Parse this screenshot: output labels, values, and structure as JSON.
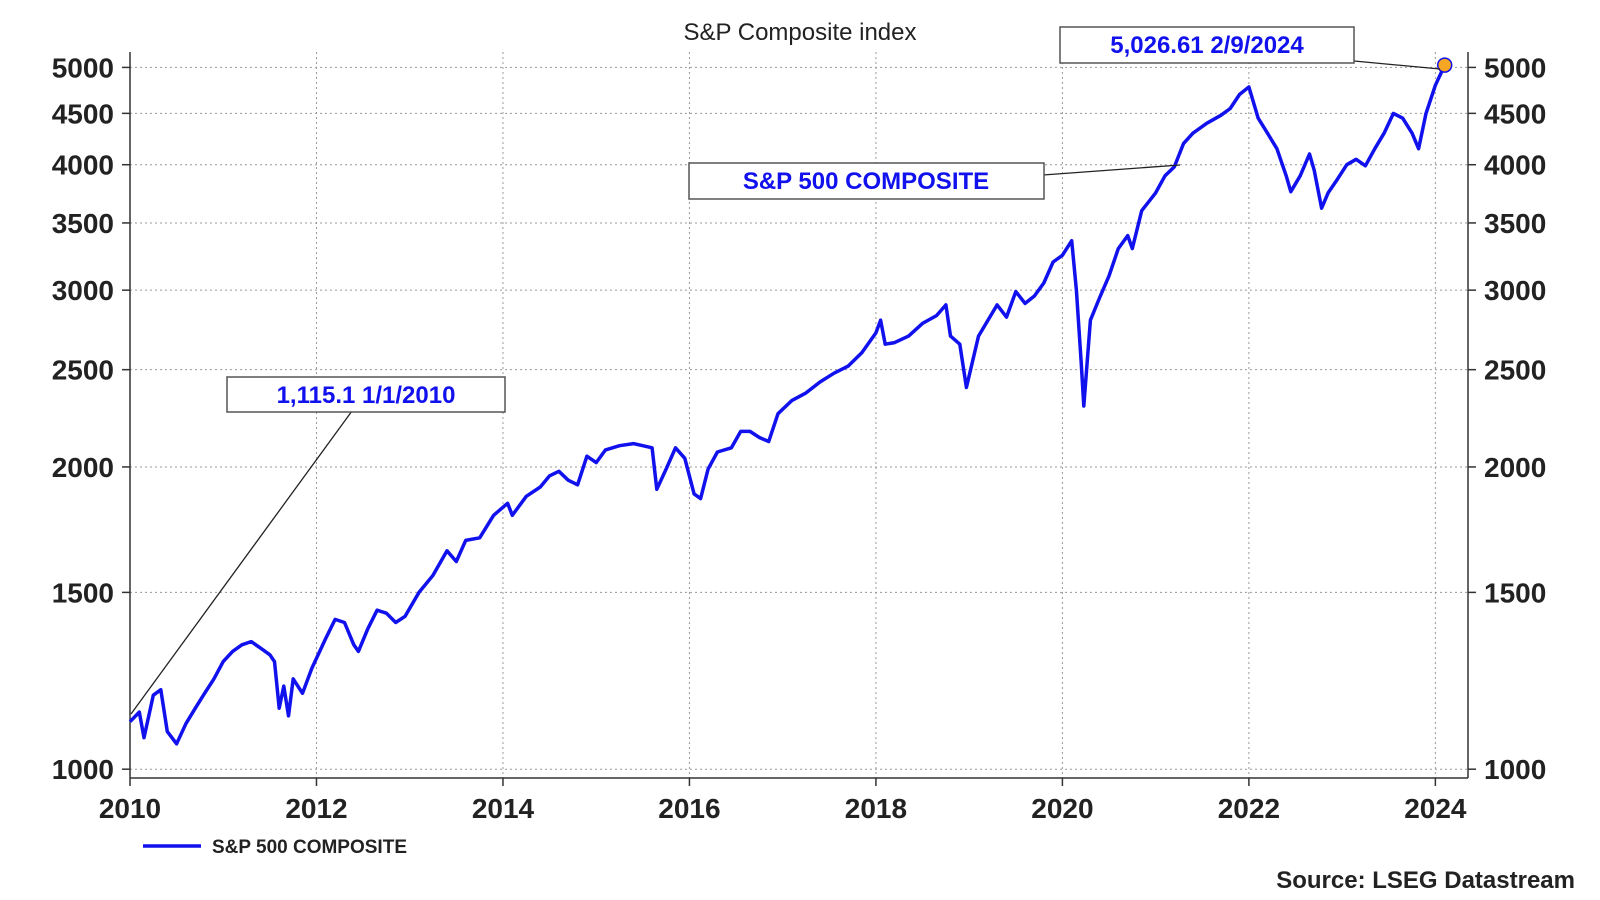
{
  "chart_data": {
    "type": "line",
    "title": "S&P Composite index",
    "yscale": "log",
    "ylim": [
      980,
      5180
    ],
    "xlim": [
      2010.0,
      2024.35
    ],
    "y_ticks": [
      1000,
      1500,
      2000,
      2500,
      3000,
      3500,
      4000,
      4500,
      5000
    ],
    "x_ticks": [
      2010,
      2012,
      2014,
      2016,
      2018,
      2020,
      2022,
      2024
    ],
    "grid": true,
    "legend_position": "bottom-left",
    "line_color": "#1111ee",
    "series": [
      {
        "name": "S&P 500 COMPOSITE",
        "x": [
          2010.0,
          2010.1,
          2010.15,
          2010.25,
          2010.33,
          2010.4,
          2010.5,
          2010.6,
          2010.7,
          2010.8,
          2010.9,
          2011.0,
          2011.1,
          2011.2,
          2011.3,
          2011.4,
          2011.5,
          2011.55,
          2011.6,
          2011.65,
          2011.7,
          2011.75,
          2011.85,
          2011.95,
          2012.1,
          2012.2,
          2012.3,
          2012.4,
          2012.45,
          2012.55,
          2012.65,
          2012.75,
          2012.85,
          2012.95,
          2013.1,
          2013.25,
          2013.4,
          2013.5,
          2013.6,
          2013.75,
          2013.9,
          2014.05,
          2014.1,
          2014.25,
          2014.4,
          2014.5,
          2014.6,
          2014.7,
          2014.8,
          2014.9,
          2015.0,
          2015.1,
          2015.25,
          2015.4,
          2015.5,
          2015.6,
          2015.65,
          2015.75,
          2015.85,
          2015.95,
          2016.05,
          2016.12,
          2016.2,
          2016.3,
          2016.45,
          2016.55,
          2016.65,
          2016.75,
          2016.85,
          2016.95,
          2017.1,
          2017.25,
          2017.4,
          2017.55,
          2017.7,
          2017.85,
          2018.0,
          2018.05,
          2018.1,
          2018.2,
          2018.35,
          2018.5,
          2018.65,
          2018.75,
          2018.8,
          2018.9,
          2018.97,
          2019.1,
          2019.3,
          2019.4,
          2019.5,
          2019.6,
          2019.7,
          2019.8,
          2019.9,
          2020.0,
          2020.1,
          2020.15,
          2020.2,
          2020.23,
          2020.3,
          2020.4,
          2020.5,
          2020.6,
          2020.7,
          2020.75,
          2020.85,
          2021.0,
          2021.1,
          2021.2,
          2021.3,
          2021.4,
          2021.55,
          2021.7,
          2021.8,
          2021.9,
          2022.0,
          2022.1,
          2022.2,
          2022.3,
          2022.4,
          2022.45,
          2022.55,
          2022.65,
          2022.7,
          2022.78,
          2022.85,
          2022.95,
          2023.05,
          2023.15,
          2023.25,
          2023.35,
          2023.45,
          2023.55,
          2023.65,
          2023.75,
          2023.82,
          2023.9,
          2024.0,
          2024.1
        ],
        "values": [
          1115.1,
          1140,
          1075,
          1185,
          1200,
          1090,
          1060,
          1110,
          1150,
          1190,
          1230,
          1280,
          1310,
          1330,
          1340,
          1320,
          1300,
          1280,
          1150,
          1210,
          1130,
          1230,
          1190,
          1260,
          1350,
          1410,
          1400,
          1330,
          1310,
          1380,
          1440,
          1430,
          1400,
          1420,
          1500,
          1560,
          1650,
          1610,
          1690,
          1700,
          1790,
          1840,
          1790,
          1870,
          1910,
          1960,
          1980,
          1940,
          1920,
          2050,
          2020,
          2080,
          2100,
          2110,
          2100,
          2090,
          1900,
          1990,
          2090,
          2040,
          1880,
          1860,
          1990,
          2070,
          2090,
          2170,
          2170,
          2140,
          2120,
          2260,
          2330,
          2370,
          2430,
          2480,
          2520,
          2600,
          2720,
          2800,
          2650,
          2660,
          2700,
          2780,
          2830,
          2900,
          2700,
          2650,
          2400,
          2700,
          2900,
          2820,
          2990,
          2910,
          2960,
          3050,
          3200,
          3250,
          3360,
          3000,
          2550,
          2300,
          2800,
          2950,
          3100,
          3300,
          3400,
          3300,
          3600,
          3750,
          3900,
          3980,
          4200,
          4300,
          4400,
          4480,
          4550,
          4700,
          4780,
          4450,
          4300,
          4150,
          3900,
          3760,
          3900,
          4100,
          3950,
          3620,
          3750,
          3870,
          4000,
          4050,
          3990,
          4150,
          4300,
          4500,
          4450,
          4300,
          4150,
          4500,
          4800,
          5026.61
        ]
      }
    ]
  },
  "labels": {
    "title": "S&P Composite index",
    "left_ticks": [
      "5000",
      "4500",
      "4000",
      "3500",
      "3000",
      "2500",
      "2000",
      "1500",
      "1000"
    ],
    "right_ticks": [
      "5000",
      "4500",
      "4000",
      "3500",
      "3000",
      "2500",
      "2000",
      "1500",
      "1000"
    ],
    "x_ticks": [
      "2010",
      "2012",
      "2014",
      "2016",
      "2018",
      "2020",
      "2022",
      "2024"
    ],
    "callout_start": "1,115.1  1/1/2010",
    "callout_end": "5,026.61  2/9/2024",
    "callout_series": "S&P 500 COMPOSITE",
    "legend": "S&P 500 COMPOSITE",
    "source": "Source: LSEG Datastream"
  },
  "colors": {
    "line": "#1111ee",
    "marker": "#f5a623",
    "grid": "#999999",
    "axis": "#333333"
  }
}
